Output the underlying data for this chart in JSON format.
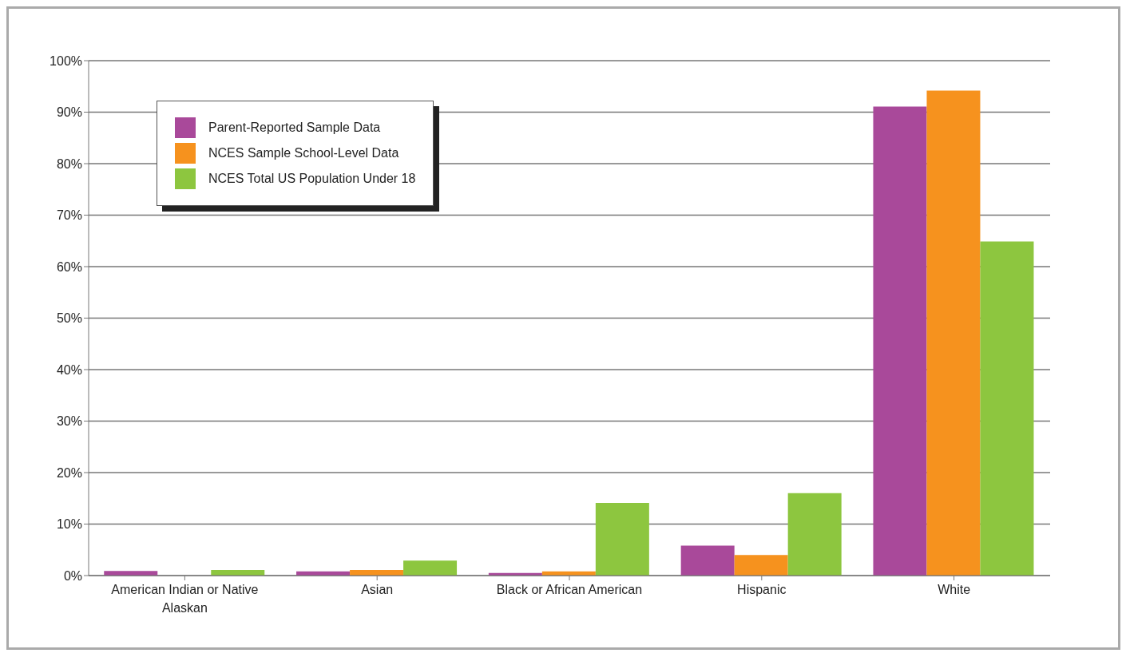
{
  "chart_data": {
    "type": "bar",
    "categories": [
      "American Indian or Native Alaskan",
      "Asian",
      "Black or African American",
      "Hispanic",
      "White"
    ],
    "series": [
      {
        "name": "Parent-Reported Sample Data",
        "color": "#a9499a",
        "values": [
          0.9,
          0.8,
          0.5,
          5.8,
          91.1
        ]
      },
      {
        "name": "NCES Sample School-Level Data",
        "color": "#f6921e",
        "values": [
          0,
          1.1,
          0.8,
          4.0,
          94.2
        ]
      },
      {
        "name": "NCES Total US Population Under 18",
        "color": "#8dc63f",
        "values": [
          1.1,
          2.9,
          14.1,
          16.0,
          64.9
        ]
      }
    ],
    "ylim": [
      0,
      100
    ],
    "yticks": [
      {
        "value": 0,
        "label": "0%"
      },
      {
        "value": 10,
        "label": "10%"
      },
      {
        "value": 20,
        "label": "20%"
      },
      {
        "value": 30,
        "label": "30%"
      },
      {
        "value": 40,
        "label": "40%"
      },
      {
        "value": 50,
        "label": "50%"
      },
      {
        "value": 60,
        "label": "60%"
      },
      {
        "value": 70,
        "label": "70%"
      },
      {
        "value": 80,
        "label": "80%"
      },
      {
        "value": 90,
        "label": "90%"
      },
      {
        "value": 100,
        "label": "100%"
      }
    ],
    "grid": "y",
    "legend": "top left"
  }
}
